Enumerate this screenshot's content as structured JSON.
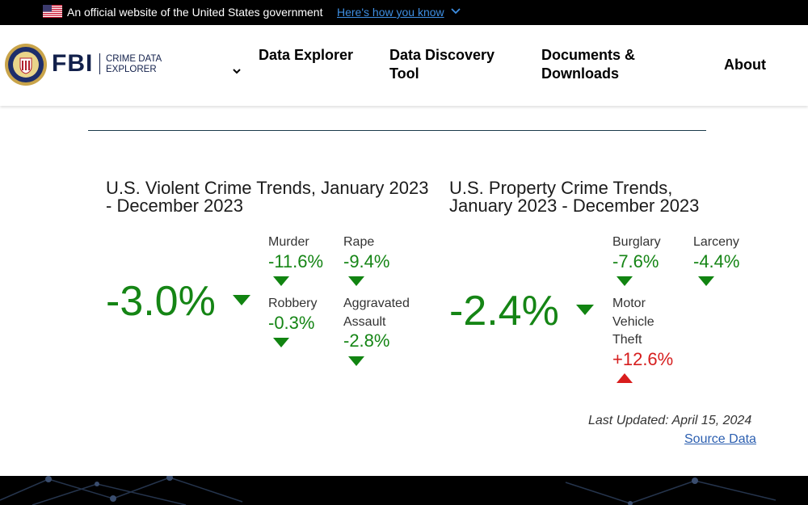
{
  "gov_banner": {
    "official_text": "An official website of the United States government",
    "how_you_know": "Here's how you know"
  },
  "header": {
    "logo_word": "FBI",
    "logo_sub_line1": "CRIME DATA",
    "logo_sub_line2": "EXPLORER",
    "nav": {
      "explorer": "Data Explorer",
      "discovery": "Data Discovery Tool",
      "documents": "Documents & Downloads",
      "about": "About"
    }
  },
  "violent": {
    "title": "U.S. Violent Crime Trends, January 2023 - December 2023",
    "overall": "-3.0%",
    "stats": [
      {
        "label": "Murder",
        "value": "-11.6%",
        "direction": "down"
      },
      {
        "label": "Rape",
        "value": "-9.4%",
        "direction": "down"
      },
      {
        "label": "Robbery",
        "value": "-0.3%",
        "direction": "down"
      },
      {
        "label": "Aggravated Assault",
        "value": "-2.8%",
        "direction": "down"
      }
    ]
  },
  "property": {
    "title": "U.S. Property Crime Trends, January 2023 - December 2023",
    "overall": "-2.4%",
    "stats": [
      {
        "label": "Burglary",
        "value": "-7.6%",
        "direction": "down"
      },
      {
        "label": "Larceny",
        "value": "-4.4%",
        "direction": "down"
      },
      {
        "label": "Motor Vehicle Theft",
        "value": "+12.6%",
        "direction": "up"
      }
    ]
  },
  "footer_note": {
    "last_updated": "Last Updated: April 15, 2024",
    "source_link": "Source Data"
  },
  "colors": {
    "decrease": "#158515",
    "increase": "#d61e1e",
    "brand_navy": "#12204b",
    "link": "#2c5fb0"
  },
  "icons": [
    "us-flag-icon",
    "chevron-down-icon",
    "fbi-seal-icon",
    "triangle-down-icon",
    "triangle-up-icon"
  ]
}
